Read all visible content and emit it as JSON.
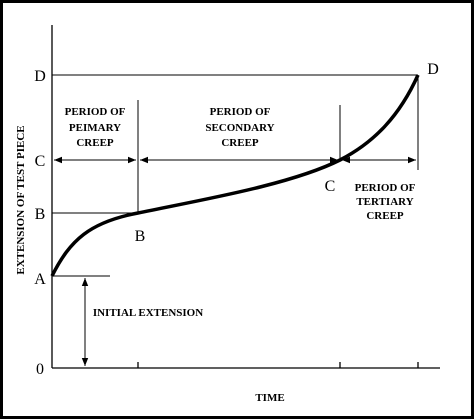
{
  "axis_labels": {
    "y": "EXTENSION OF TEST PIECE",
    "x": "TIME"
  },
  "levels": [
    "0",
    "A",
    "B",
    "C",
    "D"
  ],
  "points": [
    "B",
    "C",
    "D"
  ],
  "periods": [
    {
      "lines": [
        "PERIOD OF",
        "PEIMARY",
        "CREEP"
      ]
    },
    {
      "lines": [
        "PERIOD OF",
        "SECONDARY",
        "CREEP"
      ]
    },
    {
      "lines": [
        "PERIOD OF",
        "TERTIARY",
        "CREEP"
      ]
    }
  ],
  "initial_extension": "INITIAL EXTENSION"
}
